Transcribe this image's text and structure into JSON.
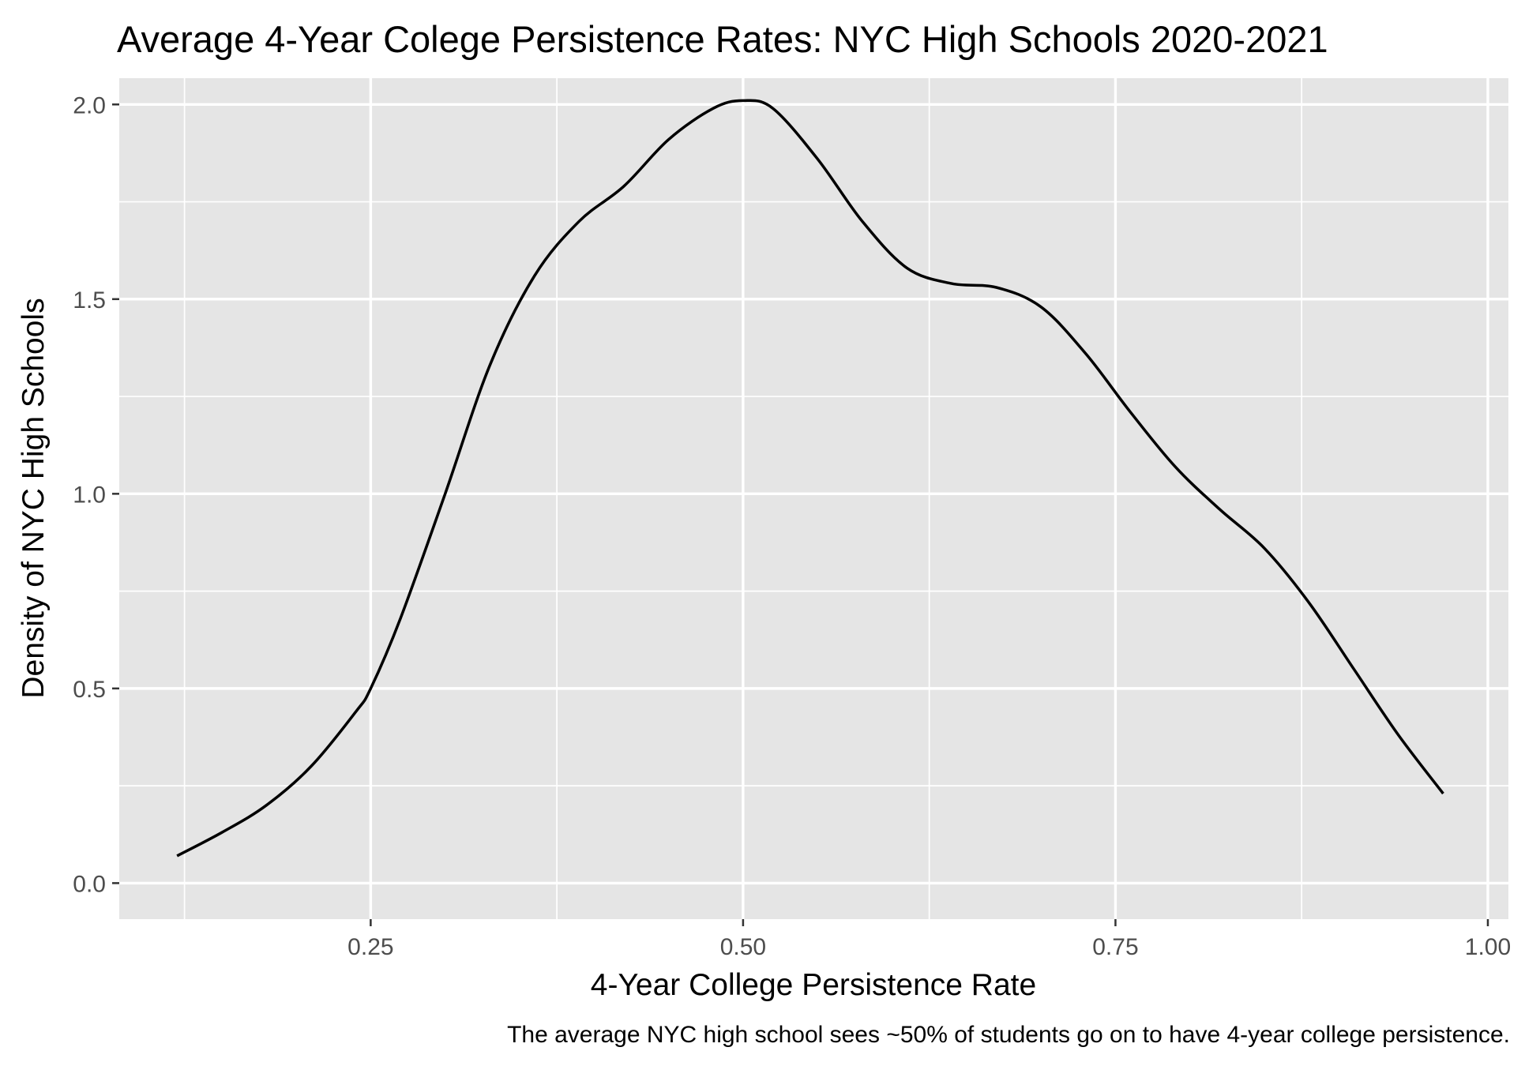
{
  "chart_data": {
    "type": "line",
    "title": "Average 4-Year Colege Persistence Rates: NYC High Schools 2020-2021",
    "xlabel": "4-Year College Persistence Rate",
    "ylabel": "Density of NYC High Schools",
    "caption": "The average NYC high school sees ~50% of students go on to have 4-year college persistence.",
    "xlim": [
      0.0812,
      1.0138
    ],
    "ylim": [
      -0.0925,
      2.0675
    ],
    "x_ticks": [
      0.25,
      0.5,
      0.75,
      1.0
    ],
    "x_tick_labels": [
      "0.25",
      "0.50",
      "0.75",
      "1.00"
    ],
    "x_minor_ticks": [
      0.125,
      0.375,
      0.625,
      0.875
    ],
    "y_ticks": [
      0.0,
      0.5,
      1.0,
      1.5,
      2.0
    ],
    "y_tick_labels": [
      "0.0",
      "0.5",
      "1.0",
      "1.5",
      "2.0"
    ],
    "y_minor_ticks": [
      0.25,
      0.75,
      1.25,
      1.75
    ],
    "grid": true,
    "background": "#e5e5e5",
    "line_color": "#000000",
    "series": [
      {
        "x": [
          0.12,
          0.15,
          0.18,
          0.21,
          0.24,
          0.25,
          0.27,
          0.3,
          0.33,
          0.36,
          0.39,
          0.42,
          0.45,
          0.48,
          0.5,
          0.52,
          0.55,
          0.58,
          0.61,
          0.64,
          0.67,
          0.7,
          0.73,
          0.76,
          0.79,
          0.82,
          0.85,
          0.88,
          0.91,
          0.94,
          0.97
        ],
        "y": [
          0.07,
          0.13,
          0.2,
          0.3,
          0.44,
          0.5,
          0.68,
          1.0,
          1.33,
          1.56,
          1.7,
          1.79,
          1.91,
          1.99,
          2.01,
          1.99,
          1.86,
          1.7,
          1.58,
          1.54,
          1.53,
          1.48,
          1.36,
          1.21,
          1.07,
          0.96,
          0.86,
          0.72,
          0.55,
          0.38,
          0.23
        ]
      }
    ]
  }
}
